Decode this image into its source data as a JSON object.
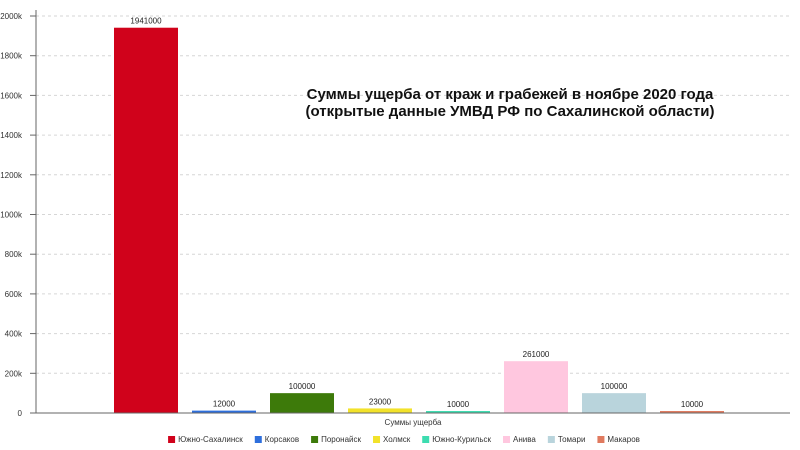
{
  "chart_data": {
    "type": "bar",
    "title_line1": "Суммы ущерба от краж и грабежей в ноябре 2020 года",
    "title_line2": "(открытые данные УМВД РФ по Сахалинской области)",
    "xlabel": "Суммы ущерба",
    "ylabel": "",
    "ylim": [
      0,
      2000000
    ],
    "yticks": [
      {
        "value": 0,
        "label": "0"
      },
      {
        "value": 200000,
        "label": "200k"
      },
      {
        "value": 400000,
        "label": "400k"
      },
      {
        "value": 600000,
        "label": "600k"
      },
      {
        "value": 800000,
        "label": "800k"
      },
      {
        "value": 1000000,
        "label": "1000k"
      },
      {
        "value": 1200000,
        "label": "1200k"
      },
      {
        "value": 1400000,
        "label": "1400k"
      },
      {
        "value": 1600000,
        "label": "1600k"
      },
      {
        "value": 1800000,
        "label": "1800k"
      },
      {
        "value": 2000000,
        "label": "2000k"
      }
    ],
    "grid": true,
    "legend_position": "bottom",
    "series": [
      {
        "name": "Южно-Сахалинск",
        "value": 1941000,
        "label": "1941000",
        "color": "#d0021b"
      },
      {
        "name": "Корсаков",
        "value": 12000,
        "label": "12000",
        "color": "#2e6fdc"
      },
      {
        "name": "Поронайск",
        "value": 100000,
        "label": "100000",
        "color": "#3d7a0a"
      },
      {
        "name": "Холмск",
        "value": 23000,
        "label": "23000",
        "color": "#f2e22a"
      },
      {
        "name": "Южно-Курильск",
        "value": 10000,
        "label": "10000",
        "color": "#3ddcb0"
      },
      {
        "name": "Анива",
        "value": 261000,
        "label": "261000",
        "color": "#ffc7df"
      },
      {
        "name": "Томари",
        "value": 100000,
        "label": "100000",
        "color": "#b9d4dc"
      },
      {
        "name": "Макаров",
        "value": 10000,
        "label": "10000",
        "color": "#e07a5f"
      }
    ]
  }
}
